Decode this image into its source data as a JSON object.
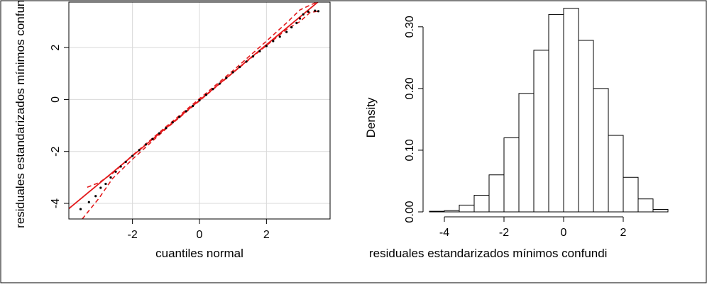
{
  "chart_data": [
    {
      "type": "scatter",
      "title": "",
      "xlabel": "cuantiles normal",
      "ylabel": "residuales estandarizados mínimos confund",
      "xlim": [
        -3.9,
        3.9
      ],
      "ylim": [
        -4.6,
        3.75
      ],
      "xticks": [
        -2,
        0,
        2
      ],
      "xtick_labels": [
        "-2",
        "0",
        "2"
      ],
      "yticks": [
        -4,
        -2,
        0,
        2
      ],
      "ytick_labels": [
        "-4",
        "-2",
        "0",
        "2"
      ],
      "grid": true,
      "reference_line": {
        "color": "#e31a1c",
        "slope": 1.07,
        "intercept": -0.03
      },
      "envelope_upper": [
        [
          -3.35,
          -3.38
        ],
        [
          -3.0,
          -3.2
        ],
        [
          -2.6,
          -2.85
        ],
        [
          -2.0,
          -2.15
        ],
        [
          -1.0,
          -1.05
        ],
        [
          0.0,
          0.03
        ],
        [
          1.0,
          1.11
        ],
        [
          2.0,
          2.25
        ],
        [
          2.6,
          2.95
        ],
        [
          3.0,
          3.45
        ],
        [
          3.5,
          3.75
        ]
      ],
      "envelope_lower": [
        [
          -3.5,
          -4.6
        ],
        [
          -3.0,
          -3.8
        ],
        [
          -2.6,
          -3.05
        ],
        [
          -2.0,
          -2.3
        ],
        [
          -1.0,
          -1.13
        ],
        [
          0.0,
          -0.05
        ],
        [
          1.0,
          1.03
        ],
        [
          2.0,
          2.08
        ],
        [
          2.6,
          2.7
        ],
        [
          3.0,
          3.0
        ],
        [
          3.3,
          3.35
        ],
        [
          3.55,
          3.4
        ]
      ],
      "points": [
        [
          -3.55,
          -4.22
        ],
        [
          -3.3,
          -3.95
        ],
        [
          -3.1,
          -3.72
        ],
        [
          -2.95,
          -3.4
        ],
        [
          -2.8,
          -3.25
        ],
        [
          -2.65,
          -3.0
        ],
        [
          -2.5,
          -2.78
        ],
        [
          -2.35,
          -2.58
        ],
        [
          -2.2,
          -2.4
        ],
        [
          -2.0,
          -2.17
        ],
        [
          -1.8,
          -1.95
        ],
        [
          -1.6,
          -1.73
        ],
        [
          -1.4,
          -1.52
        ],
        [
          -1.2,
          -1.3
        ],
        [
          -1.0,
          -1.1
        ],
        [
          -0.8,
          -0.88
        ],
        [
          -0.6,
          -0.67
        ],
        [
          -0.4,
          -0.45
        ],
        [
          -0.2,
          -0.25
        ],
        [
          0.0,
          -0.03
        ],
        [
          0.2,
          0.18
        ],
        [
          0.4,
          0.4
        ],
        [
          0.6,
          0.61
        ],
        [
          0.8,
          0.83
        ],
        [
          1.0,
          1.05
        ],
        [
          1.2,
          1.25
        ],
        [
          1.4,
          1.46
        ],
        [
          1.6,
          1.66
        ],
        [
          1.8,
          1.86
        ],
        [
          2.0,
          2.06
        ],
        [
          2.2,
          2.25
        ],
        [
          2.4,
          2.42
        ],
        [
          2.6,
          2.6
        ],
        [
          2.75,
          2.78
        ],
        [
          2.9,
          2.95
        ],
        [
          3.0,
          3.12
        ],
        [
          3.1,
          3.28
        ],
        [
          3.25,
          3.38
        ],
        [
          3.45,
          3.42
        ],
        [
          3.55,
          3.4
        ]
      ]
    },
    {
      "type": "bar",
      "title": "",
      "xlabel": "residuales estandarizados mínimos confundi",
      "ylabel": "Density",
      "xlim": [
        -4.5,
        3.5
      ],
      "ylim": [
        0,
        0.34
      ],
      "xticks": [
        -4,
        -2,
        0,
        2
      ],
      "xtick_labels": [
        "-4",
        "-2",
        "0",
        "2"
      ],
      "yticks": [
        0.0,
        0.1,
        0.2,
        0.3
      ],
      "ytick_labels": [
        "0.00",
        "0.10",
        "0.20",
        "0.30"
      ],
      "bin_edges": [
        -4.5,
        -4.0,
        -3.5,
        -3.0,
        -2.5,
        -2.0,
        -1.5,
        -1.0,
        -0.5,
        0.0,
        0.5,
        1.0,
        1.5,
        2.0,
        2.5,
        3.0,
        3.5
      ],
      "values": [
        0.001,
        0.002,
        0.011,
        0.027,
        0.06,
        0.12,
        0.192,
        0.262,
        0.32,
        0.33,
        0.278,
        0.2,
        0.124,
        0.056,
        0.021,
        0.004
      ]
    }
  ]
}
